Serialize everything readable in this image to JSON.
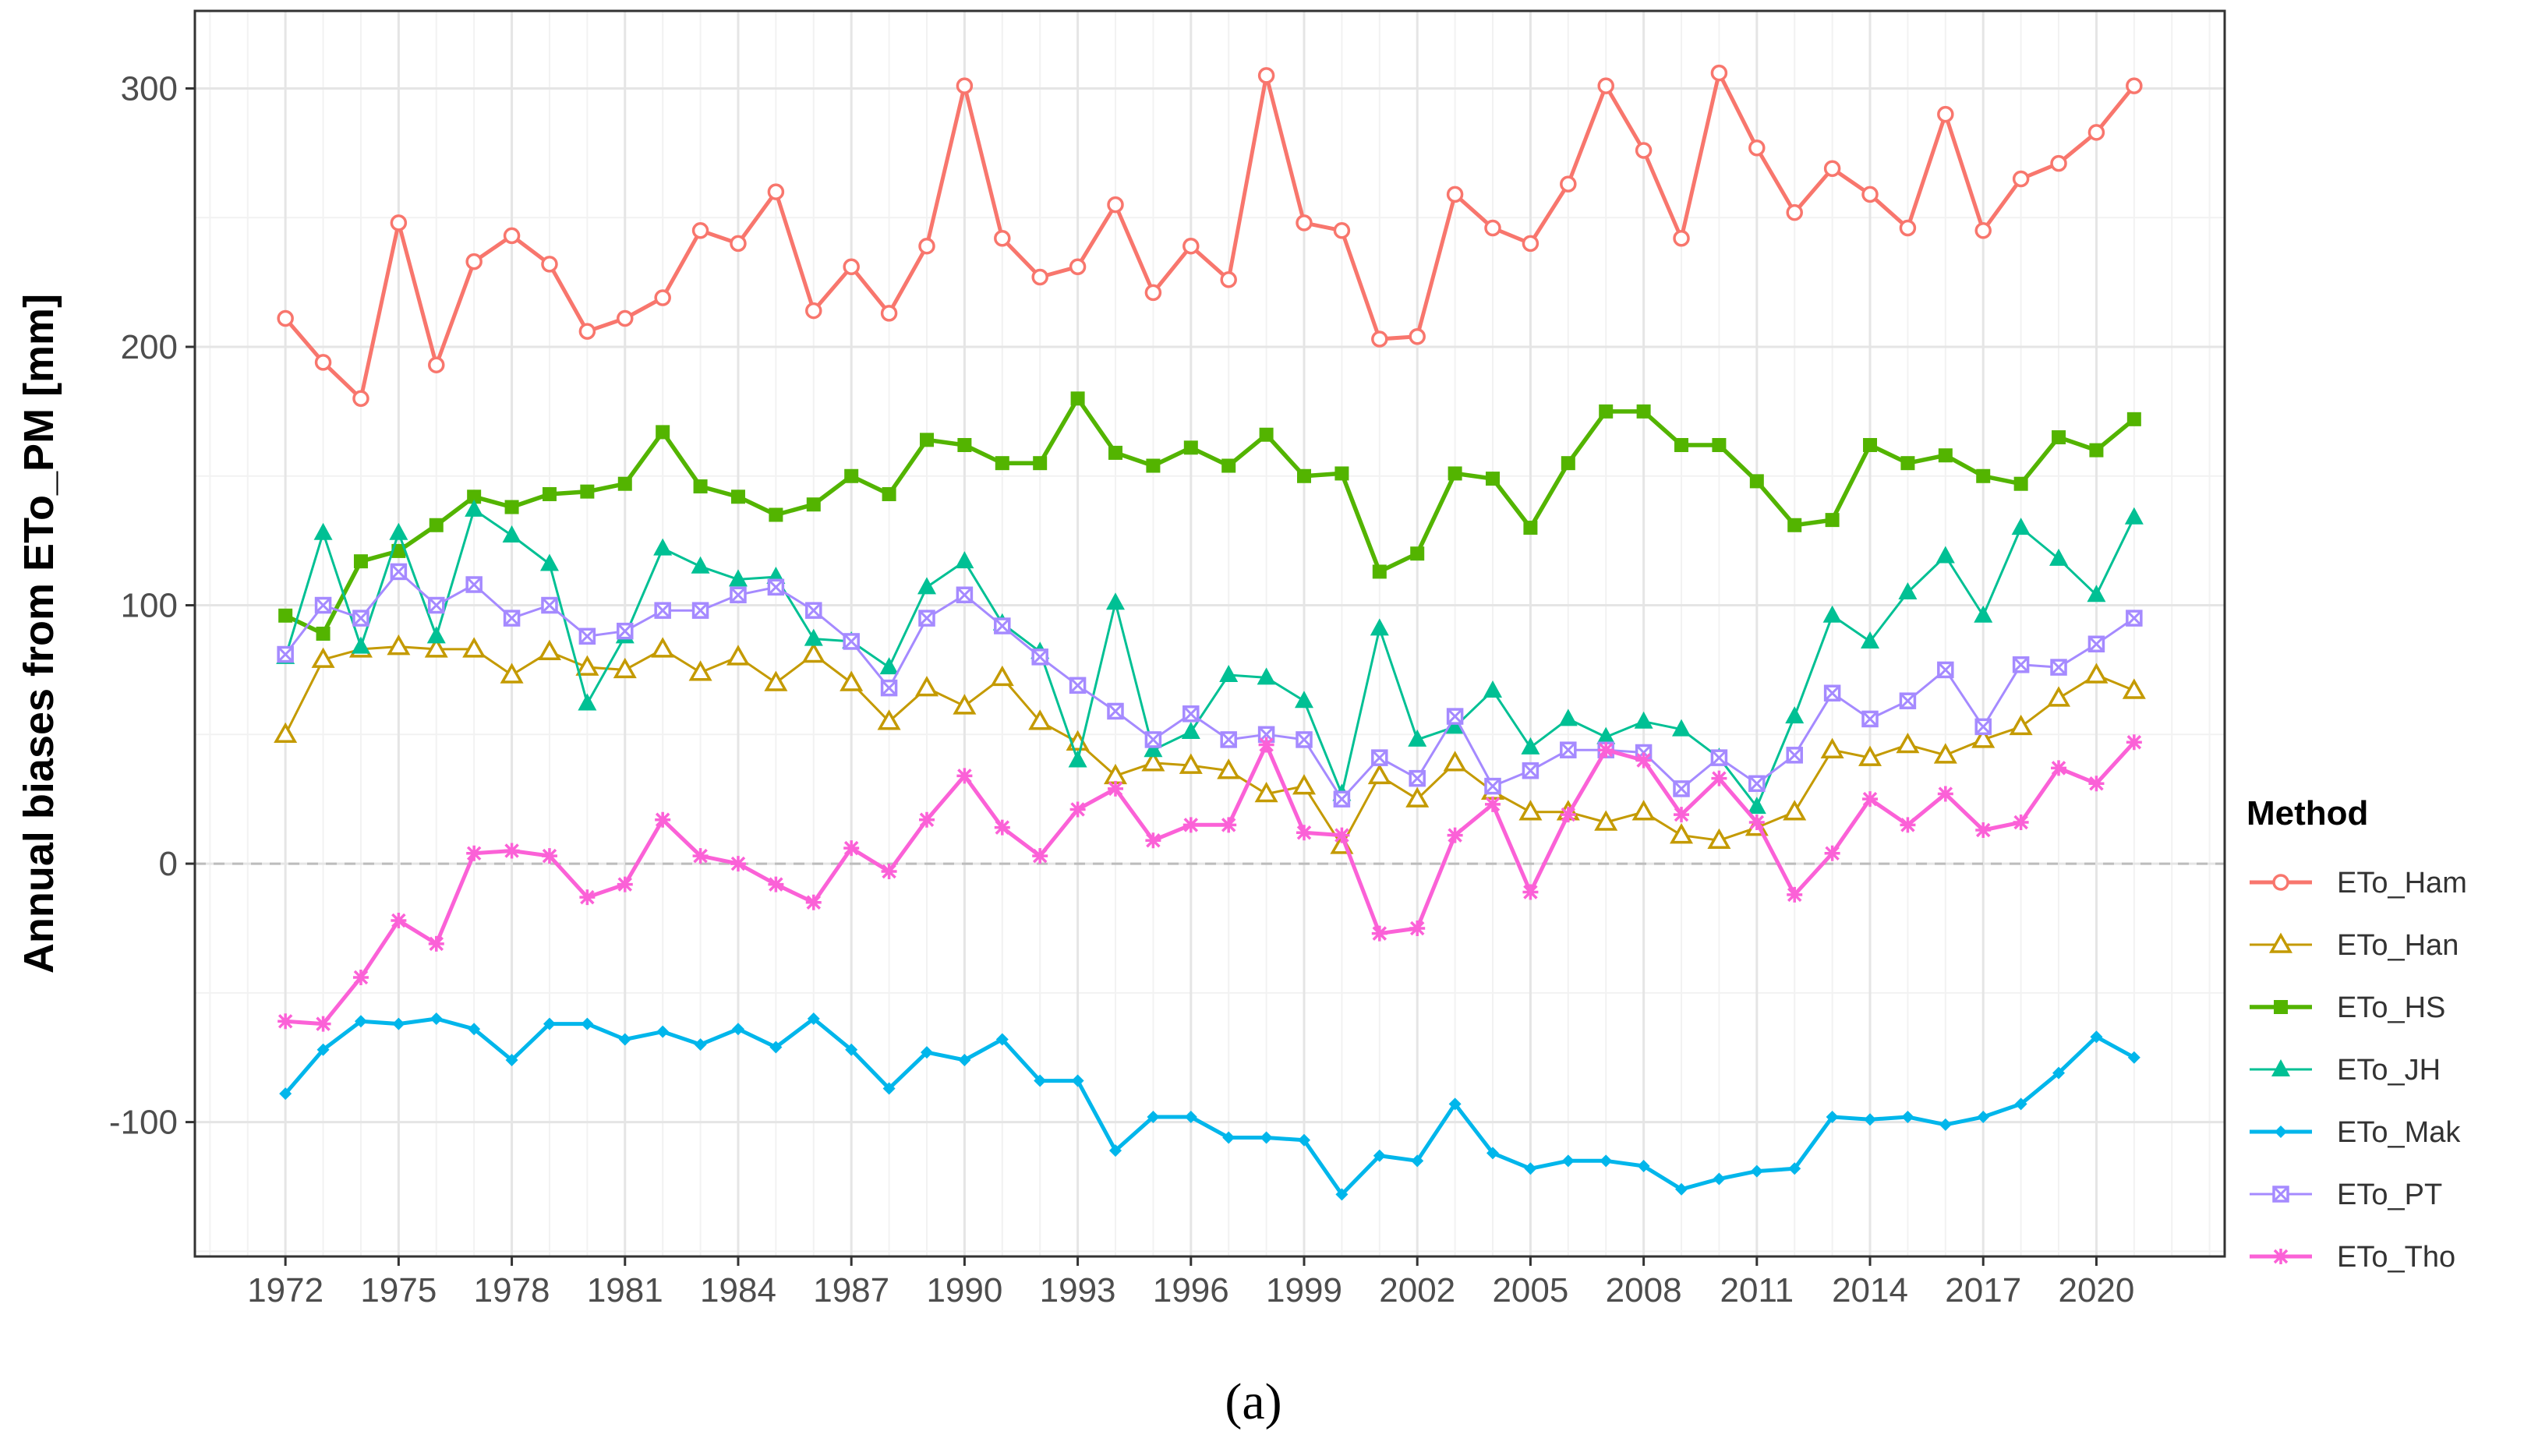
{
  "chart_data": {
    "type": "line",
    "caption": "(a)",
    "xlabel": "",
    "ylabel": "Annual biases from ETo_PM [mm]",
    "ylim": [
      -152,
      330
    ],
    "xlim": [
      1969.6,
      2023.4
    ],
    "y_ticks": [
      -100,
      0,
      100,
      200,
      300
    ],
    "y_tick_labels": [
      "-100",
      "0",
      "100",
      "200",
      "300"
    ],
    "x_ticks": [
      1972,
      1975,
      1978,
      1981,
      1984,
      1987,
      1990,
      1993,
      1996,
      1999,
      2002,
      2005,
      2008,
      2011,
      2014,
      2017,
      2020
    ],
    "x_tick_labels": [
      "1972",
      "1975",
      "1978",
      "1981",
      "1984",
      "1987",
      "1990",
      "1993",
      "1996",
      "1999",
      "2002",
      "2005",
      "2008",
      "2011",
      "2014",
      "2017",
      "2020"
    ],
    "reference_line": 0,
    "grid": true,
    "legend_title": "Method",
    "legend_position": "right",
    "x": [
      1972,
      1973,
      1974,
      1975,
      1976,
      1977,
      1978,
      1979,
      1980,
      1981,
      1982,
      1983,
      1984,
      1985,
      1986,
      1987,
      1988,
      1989,
      1990,
      1991,
      1992,
      1993,
      1994,
      1995,
      1996,
      1997,
      1998,
      1999,
      2000,
      2001,
      2002,
      2003,
      2004,
      2005,
      2006,
      2007,
      2008,
      2009,
      2010,
      2011,
      2012,
      2013,
      2014,
      2015,
      2016,
      2017,
      2018,
      2019,
      2020,
      2021
    ],
    "series": [
      {
        "name": "ETo_Ham",
        "color": "#F8766D",
        "marker": "circle-open",
        "values": [
          211,
          194,
          180,
          248,
          193,
          233,
          243,
          232,
          206,
          211,
          219,
          245,
          240,
          260,
          214,
          231,
          213,
          239,
          301,
          242,
          227,
          231,
          255,
          221,
          239,
          226,
          305,
          248,
          245,
          203,
          204,
          259,
          246,
          240,
          263,
          301,
          276,
          242,
          306,
          277,
          252,
          269,
          259,
          246,
          290,
          245,
          265,
          271,
          283,
          301
        ]
      },
      {
        "name": "ETo_Han",
        "color": "#C49A00",
        "marker": "triangle-open",
        "values": [
          50,
          79,
          83,
          84,
          83,
          83,
          73,
          82,
          76,
          75,
          83,
          74,
          80,
          70,
          81,
          70,
          55,
          68,
          61,
          72,
          55,
          47,
          34,
          39,
          38,
          36,
          27,
          30,
          7,
          34,
          25,
          39,
          28,
          20,
          20,
          16,
          20,
          11,
          9,
          14,
          20,
          44,
          41,
          46,
          42,
          48,
          53,
          64,
          73,
          67
        ]
      },
      {
        "name": "ETo_HS",
        "color": "#53B400",
        "marker": "square-filled",
        "values": [
          96,
          89,
          117,
          121,
          131,
          142,
          138,
          143,
          144,
          147,
          167,
          146,
          142,
          135,
          139,
          150,
          143,
          164,
          162,
          155,
          155,
          180,
          159,
          154,
          161,
          154,
          166,
          150,
          151,
          113,
          120,
          151,
          149,
          130,
          155,
          175,
          175,
          162,
          162,
          148,
          131,
          133,
          162,
          155,
          158,
          150,
          147,
          165,
          160,
          172
        ]
      },
      {
        "name": "ETo_JH",
        "color": "#00C094",
        "marker": "triangle-filled",
        "values": [
          80,
          128,
          84,
          128,
          88,
          137,
          127,
          116,
          62,
          88,
          122,
          115,
          110,
          111,
          87,
          86,
          76,
          107,
          117,
          93,
          82,
          40,
          101,
          44,
          51,
          73,
          72,
          63,
          27,
          91,
          48,
          53,
          67,
          45,
          56,
          49,
          55,
          52,
          41,
          22,
          57,
          96,
          86,
          105,
          119,
          96,
          130,
          118,
          104,
          134
        ]
      },
      {
        "name": "ETo_Mak",
        "color": "#00B6EB",
        "marker": "diamond-filled",
        "values": [
          -89,
          -72,
          -61,
          -62,
          -60,
          -64,
          -76,
          -62,
          -62,
          -68,
          -65,
          -70,
          -64,
          -71,
          -60,
          -72,
          -87,
          -73,
          -76,
          -68,
          -84,
          -84,
          -111,
          -98,
          -98,
          -106,
          -106,
          -107,
          -128,
          -113,
          -115,
          -93,
          -112,
          -118,
          -115,
          -115,
          -117,
          -126,
          -122,
          -119,
          -118,
          -98,
          -99,
          -98,
          -101,
          -98,
          -93,
          -81,
          -67,
          -75
        ]
      },
      {
        "name": "ETo_PT",
        "color": "#A58AFF",
        "marker": "square-crossed",
        "values": [
          81,
          100,
          95,
          113,
          100,
          108,
          95,
          100,
          88,
          90,
          98,
          98,
          104,
          107,
          98,
          86,
          68,
          95,
          104,
          92,
          80,
          69,
          59,
          48,
          58,
          48,
          50,
          48,
          25,
          41,
          33,
          57,
          30,
          36,
          44,
          44,
          43,
          29,
          41,
          31,
          42,
          66,
          56,
          63,
          75,
          53,
          77,
          76,
          85,
          95
        ]
      },
      {
        "name": "ETo_Tho",
        "color": "#FB61D7",
        "marker": "asterisk",
        "values": [
          -61,
          -62,
          -44,
          -22,
          -31,
          4,
          5,
          3,
          -13,
          -8,
          17,
          3,
          0,
          -8,
          -15,
          6,
          -3,
          17,
          34,
          14,
          3,
          21,
          29,
          9,
          15,
          15,
          46,
          12,
          11,
          -27,
          -25,
          11,
          23,
          -11,
          19,
          44,
          40,
          19,
          33,
          16,
          -12,
          4,
          25,
          15,
          27,
          13,
          16,
          37,
          31,
          47
        ]
      }
    ]
  }
}
